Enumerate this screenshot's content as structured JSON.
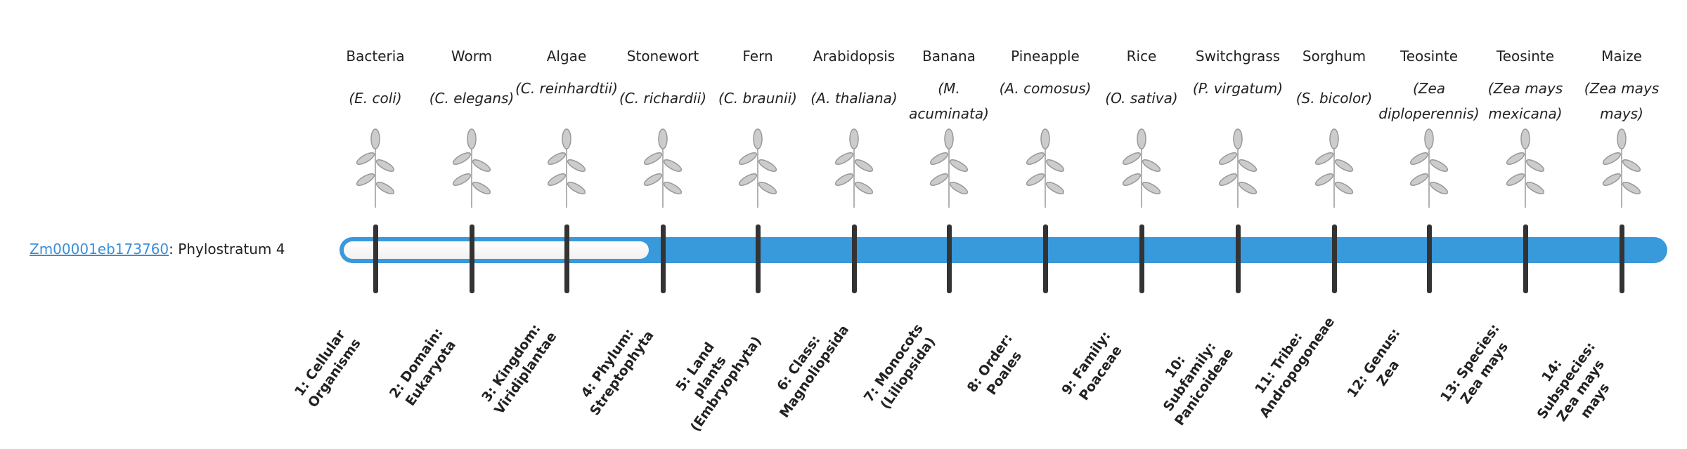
{
  "gene": {
    "id": "Zm00001eb173760",
    "suffix": ": Phylostratum 4",
    "phylostratum": 4
  },
  "colors": {
    "bar": "#3899db",
    "link": "#3a8fd9",
    "tick": "#333333"
  },
  "strata": [
    {
      "name": "Bacteria",
      "species": "(E. coli)",
      "label": "1: Cellular Organisms",
      "icon": "bacteria-illustration"
    },
    {
      "name": "Worm",
      "species": "(C. elegans)",
      "label": "2: Domain: Eukaryota",
      "icon": "worm-illustration"
    },
    {
      "name": "Algae",
      "species": "(C. reinhardtii)",
      "label": "3: Kingdom: Viridiplantae",
      "icon": "algae-illustration"
    },
    {
      "name": "Stonewort",
      "species": "(C. richardii)",
      "label": "4: Phylum: Streptophyta",
      "icon": "stonewort-illustration"
    },
    {
      "name": "Fern",
      "species": "(C. braunii)",
      "label": "5: Land plants (Embryophyta)",
      "icon": "fern-illustration"
    },
    {
      "name": "Arabidopsis",
      "species": "(A. thaliana)",
      "label": "6: Class: Magnoliopsida",
      "icon": "arabidopsis-illustration"
    },
    {
      "name": "Banana",
      "species": "(M. acuminata)",
      "label": "7: Monocots (Liliopsida)",
      "icon": "banana-illustration"
    },
    {
      "name": "Pineapple",
      "species": "(A. comosus)",
      "label": "8: Order: Poales",
      "icon": "pineapple-illustration"
    },
    {
      "name": "Rice",
      "species": "(O. sativa)",
      "label": "9: Family: Poaceae",
      "icon": "rice-illustration"
    },
    {
      "name": "Switchgrass",
      "species": "(P. virgatum)",
      "label": "10: Subfamily: Panicoideae",
      "icon": "switchgrass-illustration"
    },
    {
      "name": "Sorghum",
      "species": "(S. bicolor)",
      "label": "11: Tribe: Andropogoneae",
      "icon": "sorghum-illustration"
    },
    {
      "name": "Teosinte",
      "species": "(Zea diploperennis)",
      "label": "12: Genus: Zea",
      "icon": "teosinte-illustration"
    },
    {
      "name": "Teosinte",
      "species": "(Zea mays mexicana)",
      "label": "13: Species: Zea mays",
      "icon": "teosinte-illustration"
    },
    {
      "name": "Maize",
      "species": "(Zea mays mays)",
      "label": "14: Subspecies: Zea mays mays",
      "icon": "maize-illustration"
    }
  ]
}
